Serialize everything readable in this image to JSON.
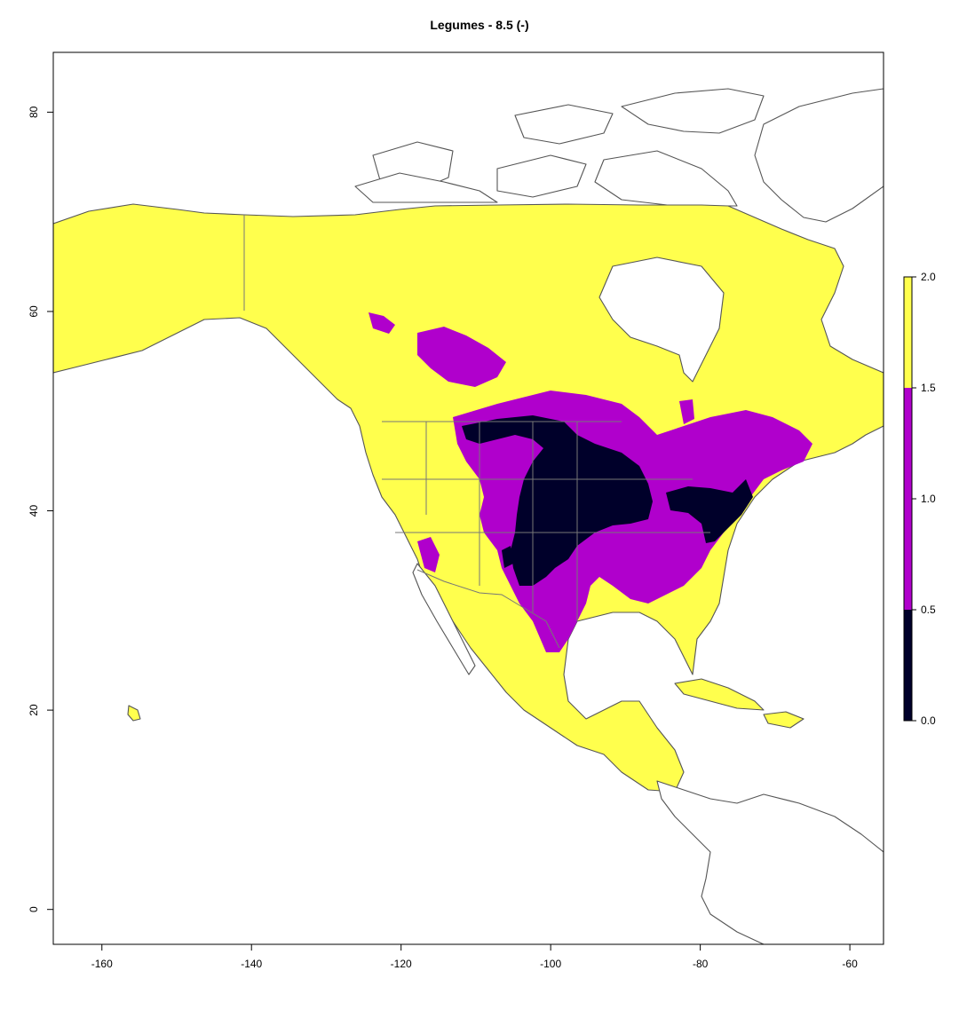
{
  "title": "Legumes - 8.5 (-)",
  "x_ticks": [
    "-160",
    "-140",
    "-120",
    "-100",
    "-80",
    "-60"
  ],
  "y_ticks": [
    "0",
    "20",
    "40",
    "60",
    "80"
  ],
  "legend": {
    "labels": [
      "0.0",
      "0.5",
      "1.0",
      "1.5",
      "2.0"
    ],
    "bins": [
      {
        "range": [
          0.0,
          0.5
        ],
        "color": "#00002a"
      },
      {
        "range": [
          0.5,
          1.5
        ],
        "color": "#b000cc"
      },
      {
        "range": [
          1.5,
          2.0
        ],
        "color": "#ffff4d"
      }
    ]
  },
  "extent": {
    "lon": [
      -166.5,
      -55.5
    ],
    "lat": [
      -3.5,
      86
    ]
  },
  "colors": {
    "high": "#ffff4d",
    "mid": "#b000cc",
    "low": "#00002a",
    "outline": "#555555"
  }
}
